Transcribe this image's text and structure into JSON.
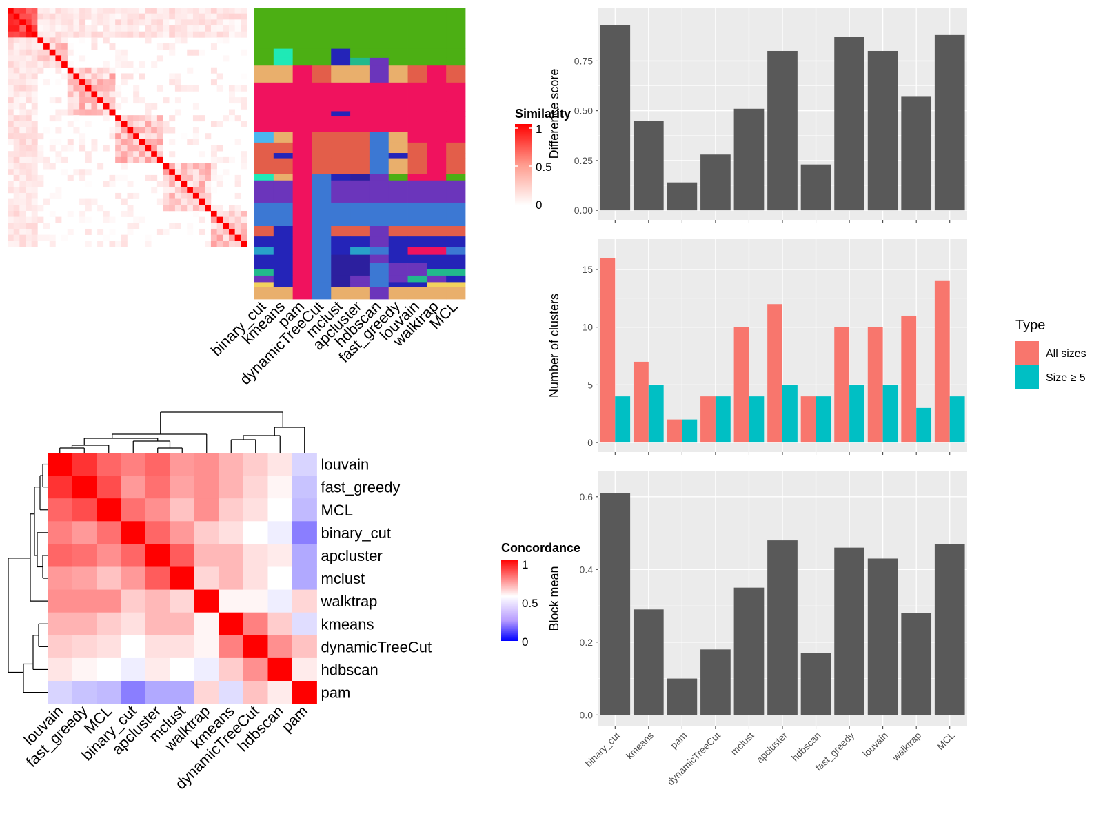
{
  "methods": [
    "binary_cut",
    "kmeans",
    "pam",
    "dynamicTreeCut",
    "mclust",
    "apcluster",
    "hdbscan",
    "fast_greedy",
    "louvain",
    "walktrap",
    "MCL"
  ],
  "colors": {
    "bar_dark": "#595959",
    "panel_bg": "#EBEBEB",
    "all_sizes": "#F8766D",
    "size_ge5": "#00BFC4",
    "heat_high": "#FF0000",
    "heat_low": "#0000FF"
  },
  "similarity_legend": {
    "title": "Similarity",
    "ticks": [
      "1",
      "0.5",
      "0"
    ]
  },
  "concordance_legend": {
    "title": "Concordance",
    "ticks": [
      "1",
      "0.5",
      "0"
    ]
  },
  "concordance_order": [
    "louvain",
    "fast_greedy",
    "MCL",
    "binary_cut",
    "apcluster",
    "mclust",
    "walktrap",
    "kmeans",
    "dynamicTreeCut",
    "hdbscan",
    "pam"
  ],
  "concordance_matrix": [
    [
      1.0,
      0.9,
      0.8,
      0.75,
      0.8,
      0.7,
      0.72,
      0.65,
      0.6,
      0.55,
      0.4
    ],
    [
      0.9,
      1.0,
      0.85,
      0.7,
      0.78,
      0.68,
      0.72,
      0.65,
      0.58,
      0.52,
      0.36
    ],
    [
      0.8,
      0.85,
      1.0,
      0.78,
      0.72,
      0.62,
      0.72,
      0.6,
      0.56,
      0.5,
      0.34
    ],
    [
      0.75,
      0.7,
      0.78,
      1.0,
      0.8,
      0.7,
      0.6,
      0.56,
      0.5,
      0.46,
      0.2
    ],
    [
      0.8,
      0.78,
      0.72,
      0.8,
      1.0,
      0.82,
      0.64,
      0.64,
      0.56,
      0.54,
      0.3
    ],
    [
      0.7,
      0.68,
      0.62,
      0.7,
      0.82,
      1.0,
      0.58,
      0.64,
      0.56,
      0.5,
      0.3
    ],
    [
      0.72,
      0.72,
      0.72,
      0.6,
      0.64,
      0.58,
      1.0,
      0.52,
      0.52,
      0.46,
      0.58
    ],
    [
      0.65,
      0.65,
      0.6,
      0.56,
      0.64,
      0.64,
      0.52,
      1.0,
      0.75,
      0.6,
      0.42
    ],
    [
      0.6,
      0.58,
      0.56,
      0.5,
      0.56,
      0.56,
      0.52,
      0.75,
      1.0,
      0.72,
      0.62
    ],
    [
      0.55,
      0.52,
      0.5,
      0.46,
      0.54,
      0.5,
      0.46,
      0.6,
      0.72,
      1.0,
      0.54
    ],
    [
      0.4,
      0.36,
      0.34,
      0.2,
      0.3,
      0.3,
      0.58,
      0.42,
      0.62,
      0.54,
      1.0
    ]
  ],
  "legend_type": {
    "title": "Type",
    "items": [
      "All sizes",
      "Size ≥ 5"
    ]
  },
  "chart_data": [
    {
      "type": "bar",
      "categories": [
        "binary_cut",
        "kmeans",
        "pam",
        "dynamicTreeCut",
        "mclust",
        "apcluster",
        "hdbscan",
        "fast_greedy",
        "louvain",
        "walktrap",
        "MCL"
      ],
      "values": [
        0.93,
        0.45,
        0.14,
        0.28,
        0.51,
        0.8,
        0.23,
        0.87,
        0.8,
        0.57,
        0.88
      ],
      "ylabel": "Difference score",
      "ylim": [
        0,
        0.97
      ],
      "yticks": [
        "0.00",
        "0.25",
        "0.50",
        "0.75"
      ],
      "grid": true
    },
    {
      "type": "bar",
      "categories": [
        "binary_cut",
        "kmeans",
        "pam",
        "dynamicTreeCut",
        "mclust",
        "apcluster",
        "hdbscan",
        "fast_greedy",
        "louvain",
        "walktrap",
        "MCL"
      ],
      "series": [
        {
          "name": "All sizes",
          "values": [
            16,
            7,
            2,
            4,
            10,
            12,
            4,
            10,
            10,
            11,
            14
          ]
        },
        {
          "name": "Size ≥ 5",
          "values": [
            4,
            5,
            2,
            4,
            4,
            5,
            4,
            5,
            5,
            3,
            4
          ]
        }
      ],
      "ylabel": "Number of clusters",
      "ylim": [
        0,
        16.8
      ],
      "yticks": [
        "0",
        "5",
        "10",
        "15"
      ],
      "legend": "right",
      "grid": true
    },
    {
      "type": "bar",
      "categories": [
        "binary_cut",
        "kmeans",
        "pam",
        "dynamicTreeCut",
        "mclust",
        "apcluster",
        "hdbscan",
        "fast_greedy",
        "louvain",
        "walktrap",
        "MCL"
      ],
      "values": [
        0.61,
        0.29,
        0.1,
        0.18,
        0.35,
        0.48,
        0.17,
        0.46,
        0.43,
        0.28,
        0.47
      ],
      "ylabel": "Block mean",
      "ylim": [
        0,
        0.64
      ],
      "yticks": [
        "0.0",
        "0.2",
        "0.4",
        "0.6"
      ],
      "grid": true
    }
  ]
}
